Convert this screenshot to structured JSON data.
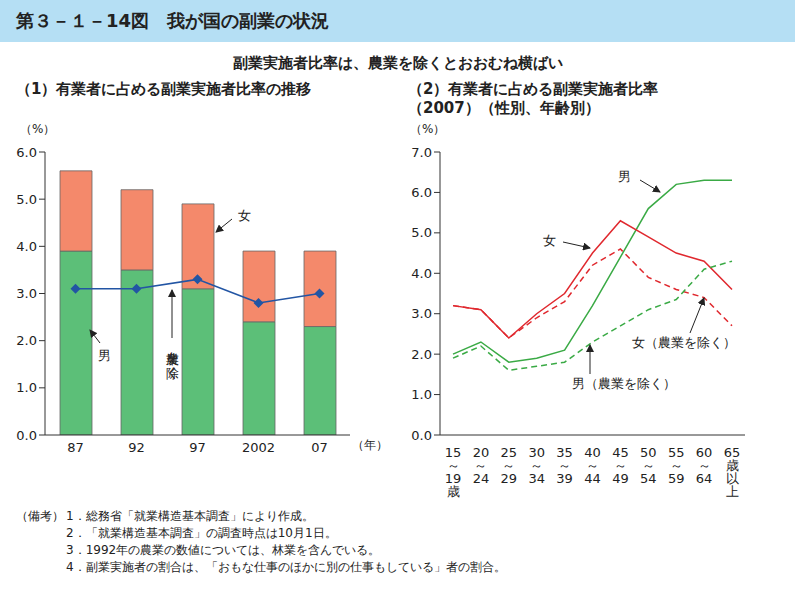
{
  "title": "第３－１－14図　我が国の副業の状況",
  "subtitle": "副業実施者比率は、農業を除くとおおむね横ばい",
  "notes": {
    "heading": "（備考）",
    "items": [
      "1．総務省「就業構造基本調査」により作成。",
      "2．「就業構造基本調査」の調査時点は10月1日。",
      "3．1992年の農業の数値については、林業を含んでいる。",
      "4．副業実施者の割合は、「おもな仕事のほかに別の仕事もしている」者の割合。"
    ]
  },
  "chart_data": [
    {
      "type": "bar",
      "title": "（1）有業者に占める副業実施者比率の推移",
      "x_label": "（年）",
      "y_label": "（%）",
      "categories": [
        "87",
        "92",
        "97",
        "2002",
        "07"
      ],
      "stacked": true,
      "grid": false,
      "series": [
        {
          "name": "男",
          "type": "bar",
          "color": "#5cbf78",
          "values": [
            3.9,
            3.5,
            3.1,
            2.4,
            2.3
          ]
        },
        {
          "name": "女",
          "type": "bar",
          "color": "#f4896b",
          "values": [
            1.7,
            1.7,
            1.8,
            1.5,
            1.6
          ]
        },
        {
          "name": "農業を除く",
          "type": "line",
          "color": "#2255a4",
          "marker": "diamond",
          "values": [
            3.1,
            3.1,
            3.3,
            2.8,
            3.0
          ]
        }
      ],
      "ylim": [
        0,
        6
      ],
      "yticks": [
        {
          "value": 0,
          "label": "0.0"
        },
        {
          "value": 1,
          "label": "1.0"
        },
        {
          "value": 2,
          "label": "2.0"
        },
        {
          "value": 3,
          "label": "3.0"
        },
        {
          "value": 4,
          "label": "4.0"
        },
        {
          "value": 5,
          "label": "5.0"
        },
        {
          "value": 6,
          "label": "6.0"
        }
      ]
    },
    {
      "type": "line",
      "title": "（2）有業者に占める副業実施者比率\n（2007）（性別、年齢別）",
      "y_label": "（%）",
      "categories": [
        "15～19歳",
        "20～24",
        "25～29",
        "30～34",
        "35～39",
        "40～44",
        "45～49",
        "50～54",
        "55～59",
        "60～64",
        "65歳以上"
      ],
      "grid": false,
      "series": [
        {
          "name": "男",
          "color": "#3aaa45",
          "line_style": "solid",
          "values": [
            2.0,
            2.3,
            1.8,
            1.9,
            2.1,
            3.2,
            4.4,
            5.6,
            6.2,
            6.3,
            6.3
          ]
        },
        {
          "name": "女",
          "color": "#e0282e",
          "line_style": "solid",
          "values": [
            3.2,
            3.1,
            2.4,
            3.0,
            3.5,
            4.5,
            5.3,
            4.9,
            4.5,
            4.3,
            3.6
          ]
        },
        {
          "name": "女（農業を除く）",
          "color": "#e0282e",
          "line_style": "dashed",
          "values": [
            3.2,
            3.1,
            2.4,
            2.9,
            3.3,
            4.2,
            4.6,
            3.9,
            3.6,
            3.4,
            2.7
          ]
        },
        {
          "name": "男（農業を除く）",
          "color": "#3aaa45",
          "line_style": "dashed",
          "values": [
            1.9,
            2.2,
            1.6,
            1.7,
            1.8,
            2.3,
            2.7,
            3.1,
            3.35,
            4.1,
            4.3
          ]
        }
      ],
      "ylim": [
        0,
        7
      ],
      "yticks": [
        {
          "value": 0,
          "label": "0.0"
        },
        {
          "value": 1,
          "label": "1.0"
        },
        {
          "value": 2,
          "label": "2.0"
        },
        {
          "value": 3,
          "label": "3.0"
        },
        {
          "value": 4,
          "label": "4.0"
        },
        {
          "value": 5,
          "label": "5.0"
        },
        {
          "value": 6,
          "label": "6.0"
        },
        {
          "value": 7,
          "label": "7.0"
        }
      ]
    }
  ]
}
